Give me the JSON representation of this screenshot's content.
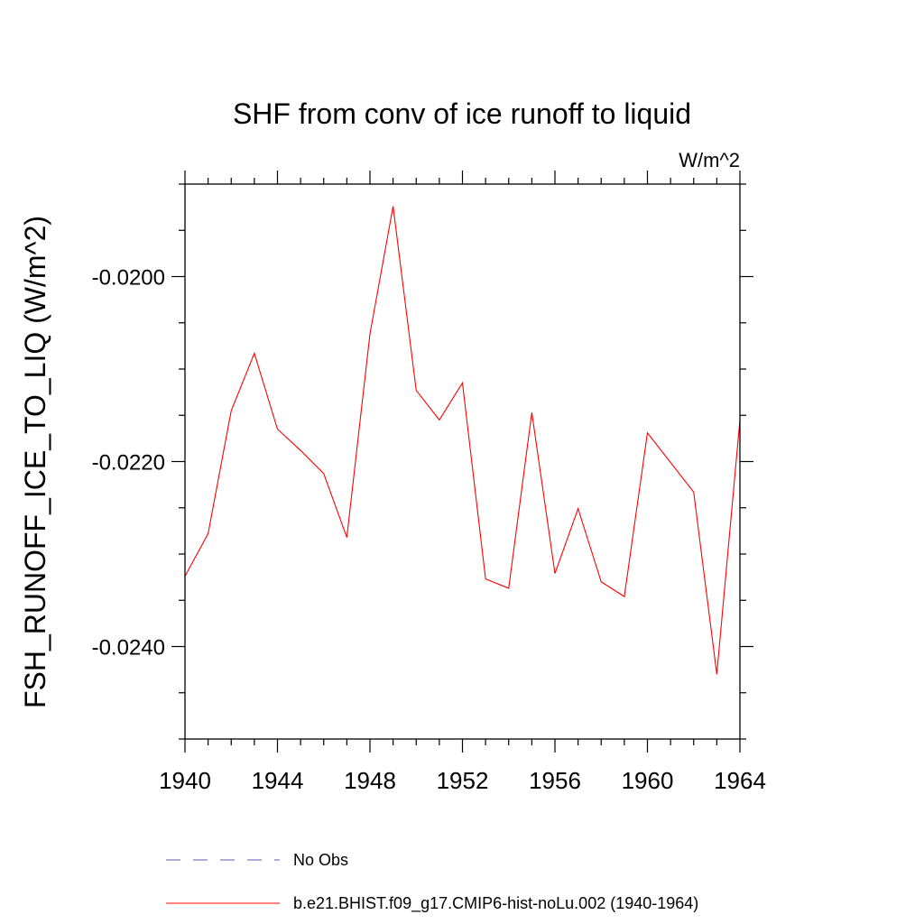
{
  "chart_data": {
    "type": "line",
    "title": "SHF from conv of ice runoff to liquid",
    "units_label": "W/m^2",
    "ylabel": "FSH_RUNOFF_ICE_TO_LIQ  (W/m^2)",
    "xlabel": "",
    "xlim": [
      1940,
      1964
    ],
    "ylim": [
      -0.025,
      -0.019
    ],
    "x_ticks": [
      1940,
      1944,
      1948,
      1952,
      1956,
      1960,
      1964
    ],
    "x_tick_labels": [
      "1940",
      "1944",
      "1948",
      "1952",
      "1956",
      "1960",
      "1964"
    ],
    "y_ticks": [
      -0.02,
      -0.022,
      -0.024
    ],
    "y_tick_labels": [
      "-0.0200",
      "-0.0220",
      "-0.0240"
    ],
    "y_minor_step": 0.0005,
    "x_minor_step": 1,
    "grid": false,
    "legend_position": "bottom",
    "series": [
      {
        "name": "b.e21.BHIST.f09_g17.CMIP6-hist-noLu.002 (1940-1964)",
        "color": "#ff0000",
        "style": "solid",
        "x": [
          1940,
          1941,
          1942,
          1943,
          1944,
          1945,
          1946,
          1947,
          1948,
          1949,
          1950,
          1951,
          1952,
          1953,
          1954,
          1955,
          1956,
          1957,
          1958,
          1959,
          1960,
          1961,
          1962,
          1963,
          1964
        ],
        "y": [
          -0.02324,
          -0.02278,
          -0.02145,
          -0.02083,
          -0.02165,
          -0.02188,
          -0.02213,
          -0.02282,
          -0.02062,
          -0.01924,
          -0.02123,
          -0.02155,
          -0.02115,
          -0.02327,
          -0.02337,
          -0.02147,
          -0.02321,
          -0.02251,
          -0.0233,
          -0.02346,
          -0.02169,
          -0.02201,
          -0.02233,
          -0.0243,
          -0.02155
        ]
      },
      {
        "name": "No Obs",
        "color": "#5a5aa8",
        "style": "dashed",
        "x": [],
        "y": []
      }
    ]
  }
}
